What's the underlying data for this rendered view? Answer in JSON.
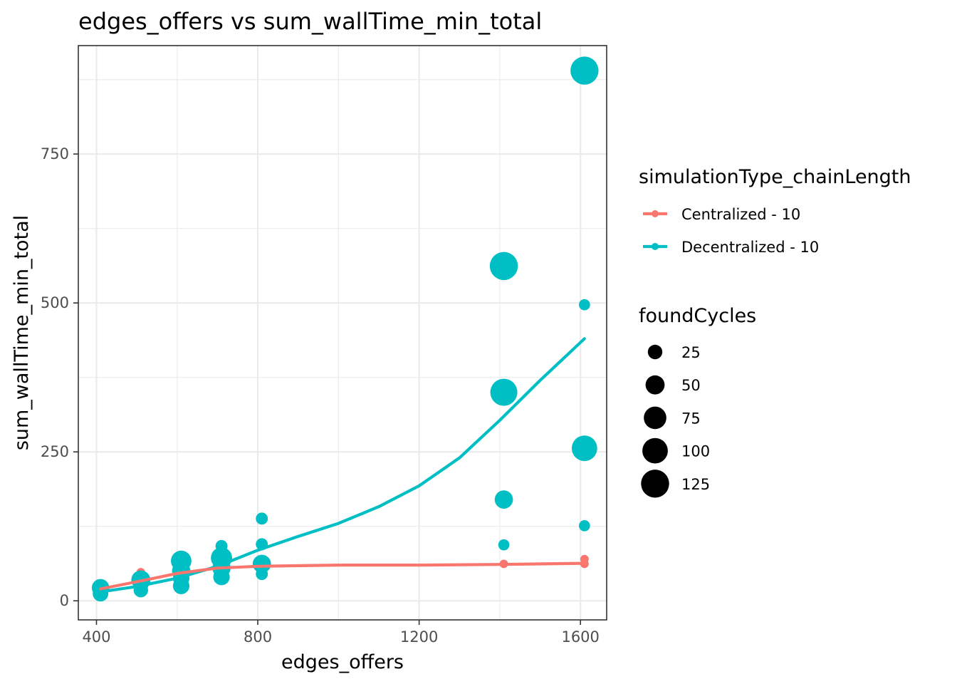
{
  "chart_data": {
    "type": "scatter",
    "title": "edges_offers  vs  sum_wallTime_min_total",
    "xlabel": "edges_offers",
    "ylabel": "sum_wallTime_min_total",
    "xlim": [
      355,
      1665
    ],
    "ylim": [
      -32,
      932
    ],
    "x_ticks": [
      400,
      800,
      1200,
      1600
    ],
    "x_tick_labels": [
      "400",
      "800",
      "1200",
      "1600"
    ],
    "y_ticks": [
      0,
      250,
      500,
      750
    ],
    "y_tick_labels": [
      "0",
      "250",
      "500",
      "750"
    ],
    "grid": true,
    "legend_position": "right",
    "color_legend": {
      "title": "simulationType_chainLength",
      "entries": [
        {
          "label": "Centralized - 10",
          "color": "#F8766D"
        },
        {
          "label": "Decentralized - 10",
          "color": "#00BFC4"
        }
      ]
    },
    "size_legend": {
      "title": "foundCycles",
      "entries": [
        {
          "label": "25",
          "value": 25
        },
        {
          "label": "50",
          "value": 50
        },
        {
          "label": "75",
          "value": 75
        },
        {
          "label": "100",
          "value": 100
        },
        {
          "label": "125",
          "value": 125
        }
      ]
    },
    "series": [
      {
        "name": "Centralized - 10",
        "color": "#F8766D",
        "points": [
          {
            "x": 410,
            "y": 20,
            "size": 20
          },
          {
            "x": 510,
            "y": 48,
            "size": 5
          },
          {
            "x": 510,
            "y": 38,
            "size": 12
          },
          {
            "x": 610,
            "y": 58,
            "size": 5
          },
          {
            "x": 610,
            "y": 48,
            "size": 10
          },
          {
            "x": 710,
            "y": 60,
            "size": 8
          },
          {
            "x": 810,
            "y": 60,
            "size": 8
          },
          {
            "x": 1410,
            "y": 62,
            "size": 5
          },
          {
            "x": 1610,
            "y": 70,
            "size": 5
          },
          {
            "x": 1610,
            "y": 62,
            "size": 5
          }
        ],
        "smooth": [
          {
            "x": 410,
            "y": 20
          },
          {
            "x": 500,
            "y": 32
          },
          {
            "x": 600,
            "y": 46
          },
          {
            "x": 700,
            "y": 55
          },
          {
            "x": 800,
            "y": 58
          },
          {
            "x": 1000,
            "y": 60
          },
          {
            "x": 1200,
            "y": 60
          },
          {
            "x": 1400,
            "y": 61
          },
          {
            "x": 1610,
            "y": 63
          }
        ]
      },
      {
        "name": "Decentralized - 10",
        "color": "#00BFC4",
        "points": [
          {
            "x": 410,
            "y": 22,
            "size": 40
          },
          {
            "x": 410,
            "y": 12,
            "size": 30
          },
          {
            "x": 510,
            "y": 35,
            "size": 50
          },
          {
            "x": 510,
            "y": 28,
            "size": 30
          },
          {
            "x": 510,
            "y": 18,
            "size": 25
          },
          {
            "x": 610,
            "y": 67,
            "size": 60
          },
          {
            "x": 610,
            "y": 50,
            "size": 45
          },
          {
            "x": 610,
            "y": 38,
            "size": 35
          },
          {
            "x": 610,
            "y": 25,
            "size": 35
          },
          {
            "x": 710,
            "y": 92,
            "size": 15
          },
          {
            "x": 710,
            "y": 72,
            "size": 65
          },
          {
            "x": 710,
            "y": 55,
            "size": 45
          },
          {
            "x": 710,
            "y": 40,
            "size": 35
          },
          {
            "x": 810,
            "y": 138,
            "size": 15
          },
          {
            "x": 810,
            "y": 95,
            "size": 15
          },
          {
            "x": 810,
            "y": 62,
            "size": 45
          },
          {
            "x": 810,
            "y": 45,
            "size": 15
          },
          {
            "x": 1410,
            "y": 562,
            "size": 125
          },
          {
            "x": 1410,
            "y": 350,
            "size": 115
          },
          {
            "x": 1410,
            "y": 170,
            "size": 45
          },
          {
            "x": 1410,
            "y": 94,
            "size": 12
          },
          {
            "x": 1610,
            "y": 890,
            "size": 125
          },
          {
            "x": 1610,
            "y": 497,
            "size": 12
          },
          {
            "x": 1610,
            "y": 256,
            "size": 100
          },
          {
            "x": 1610,
            "y": 126,
            "size": 12
          }
        ],
        "smooth": [
          {
            "x": 410,
            "y": 15
          },
          {
            "x": 500,
            "y": 24
          },
          {
            "x": 600,
            "y": 38
          },
          {
            "x": 700,
            "y": 58
          },
          {
            "x": 800,
            "y": 85
          },
          {
            "x": 900,
            "y": 108
          },
          {
            "x": 1000,
            "y": 130
          },
          {
            "x": 1100,
            "y": 158
          },
          {
            "x": 1200,
            "y": 193
          },
          {
            "x": 1300,
            "y": 240
          },
          {
            "x": 1400,
            "y": 303
          },
          {
            "x": 1500,
            "y": 370
          },
          {
            "x": 1610,
            "y": 440
          }
        ]
      }
    ]
  }
}
